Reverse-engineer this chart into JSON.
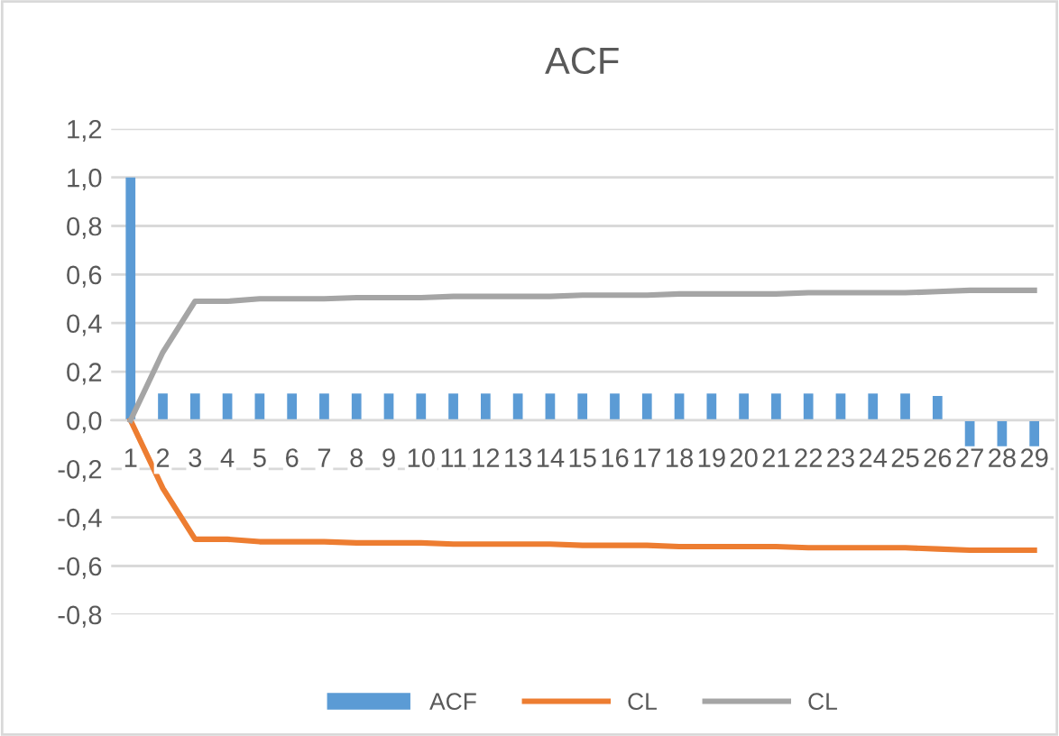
{
  "chart_data": {
    "type": "bar",
    "title": "ACF",
    "categories": [
      "1",
      "2",
      "3",
      "4",
      "5",
      "6",
      "7",
      "8",
      "9",
      "10",
      "11",
      "12",
      "13",
      "14",
      "15",
      "16",
      "17",
      "18",
      "19",
      "20",
      "21",
      "22",
      "23",
      "24",
      "25",
      "26",
      "27",
      "28",
      "29"
    ],
    "series": [
      {
        "name": "ACF",
        "color": "#5b9bd5",
        "values": [
          1.0,
          0.11,
          0.11,
          0.11,
          0.11,
          0.11,
          0.11,
          0.11,
          0.11,
          0.11,
          0.11,
          0.11,
          0.11,
          0.11,
          0.11,
          0.11,
          0.11,
          0.11,
          0.11,
          0.11,
          0.11,
          0.11,
          0.11,
          0.11,
          0.11,
          0.1,
          -0.11,
          -0.11,
          -0.11
        ]
      },
      {
        "name": "CL",
        "type": "line",
        "color": "#ed7d31",
        "values": [
          0,
          -0.28,
          -0.49,
          -0.49,
          -0.5,
          -0.5,
          -0.5,
          -0.505,
          -0.505,
          -0.505,
          -0.51,
          -0.51,
          -0.51,
          -0.51,
          -0.515,
          -0.515,
          -0.515,
          -0.52,
          -0.52,
          -0.52,
          -0.52,
          -0.525,
          -0.525,
          -0.525,
          -0.525,
          -0.53,
          -0.535,
          -0.535,
          -0.535
        ]
      },
      {
        "name": "CL",
        "type": "line",
        "color": "#a5a5a5",
        "values": [
          0,
          0.28,
          0.49,
          0.49,
          0.5,
          0.5,
          0.5,
          0.505,
          0.505,
          0.505,
          0.51,
          0.51,
          0.51,
          0.51,
          0.515,
          0.515,
          0.515,
          0.52,
          0.52,
          0.52,
          0.52,
          0.525,
          0.525,
          0.525,
          0.525,
          0.53,
          0.535,
          0.535,
          0.535
        ]
      }
    ],
    "ylim": [
      -0.8,
      1.2
    ],
    "yticks": [
      {
        "value": -0.8,
        "label": "-0,8"
      },
      {
        "value": -0.6,
        "label": "-0,6"
      },
      {
        "value": -0.4,
        "label": "-0,4"
      },
      {
        "value": -0.2,
        "label": "-0,2"
      },
      {
        "value": 0.0,
        "label": "0,0"
      },
      {
        "value": 0.2,
        "label": "0,2"
      },
      {
        "value": 0.4,
        "label": "0,4"
      },
      {
        "value": 0.6,
        "label": "0,6"
      },
      {
        "value": 0.8,
        "label": "0,8"
      },
      {
        "value": 1.0,
        "label": "1,0"
      },
      {
        "value": 1.2,
        "label": "1,2"
      }
    ],
    "grid": "y",
    "legend": "bottom"
  }
}
